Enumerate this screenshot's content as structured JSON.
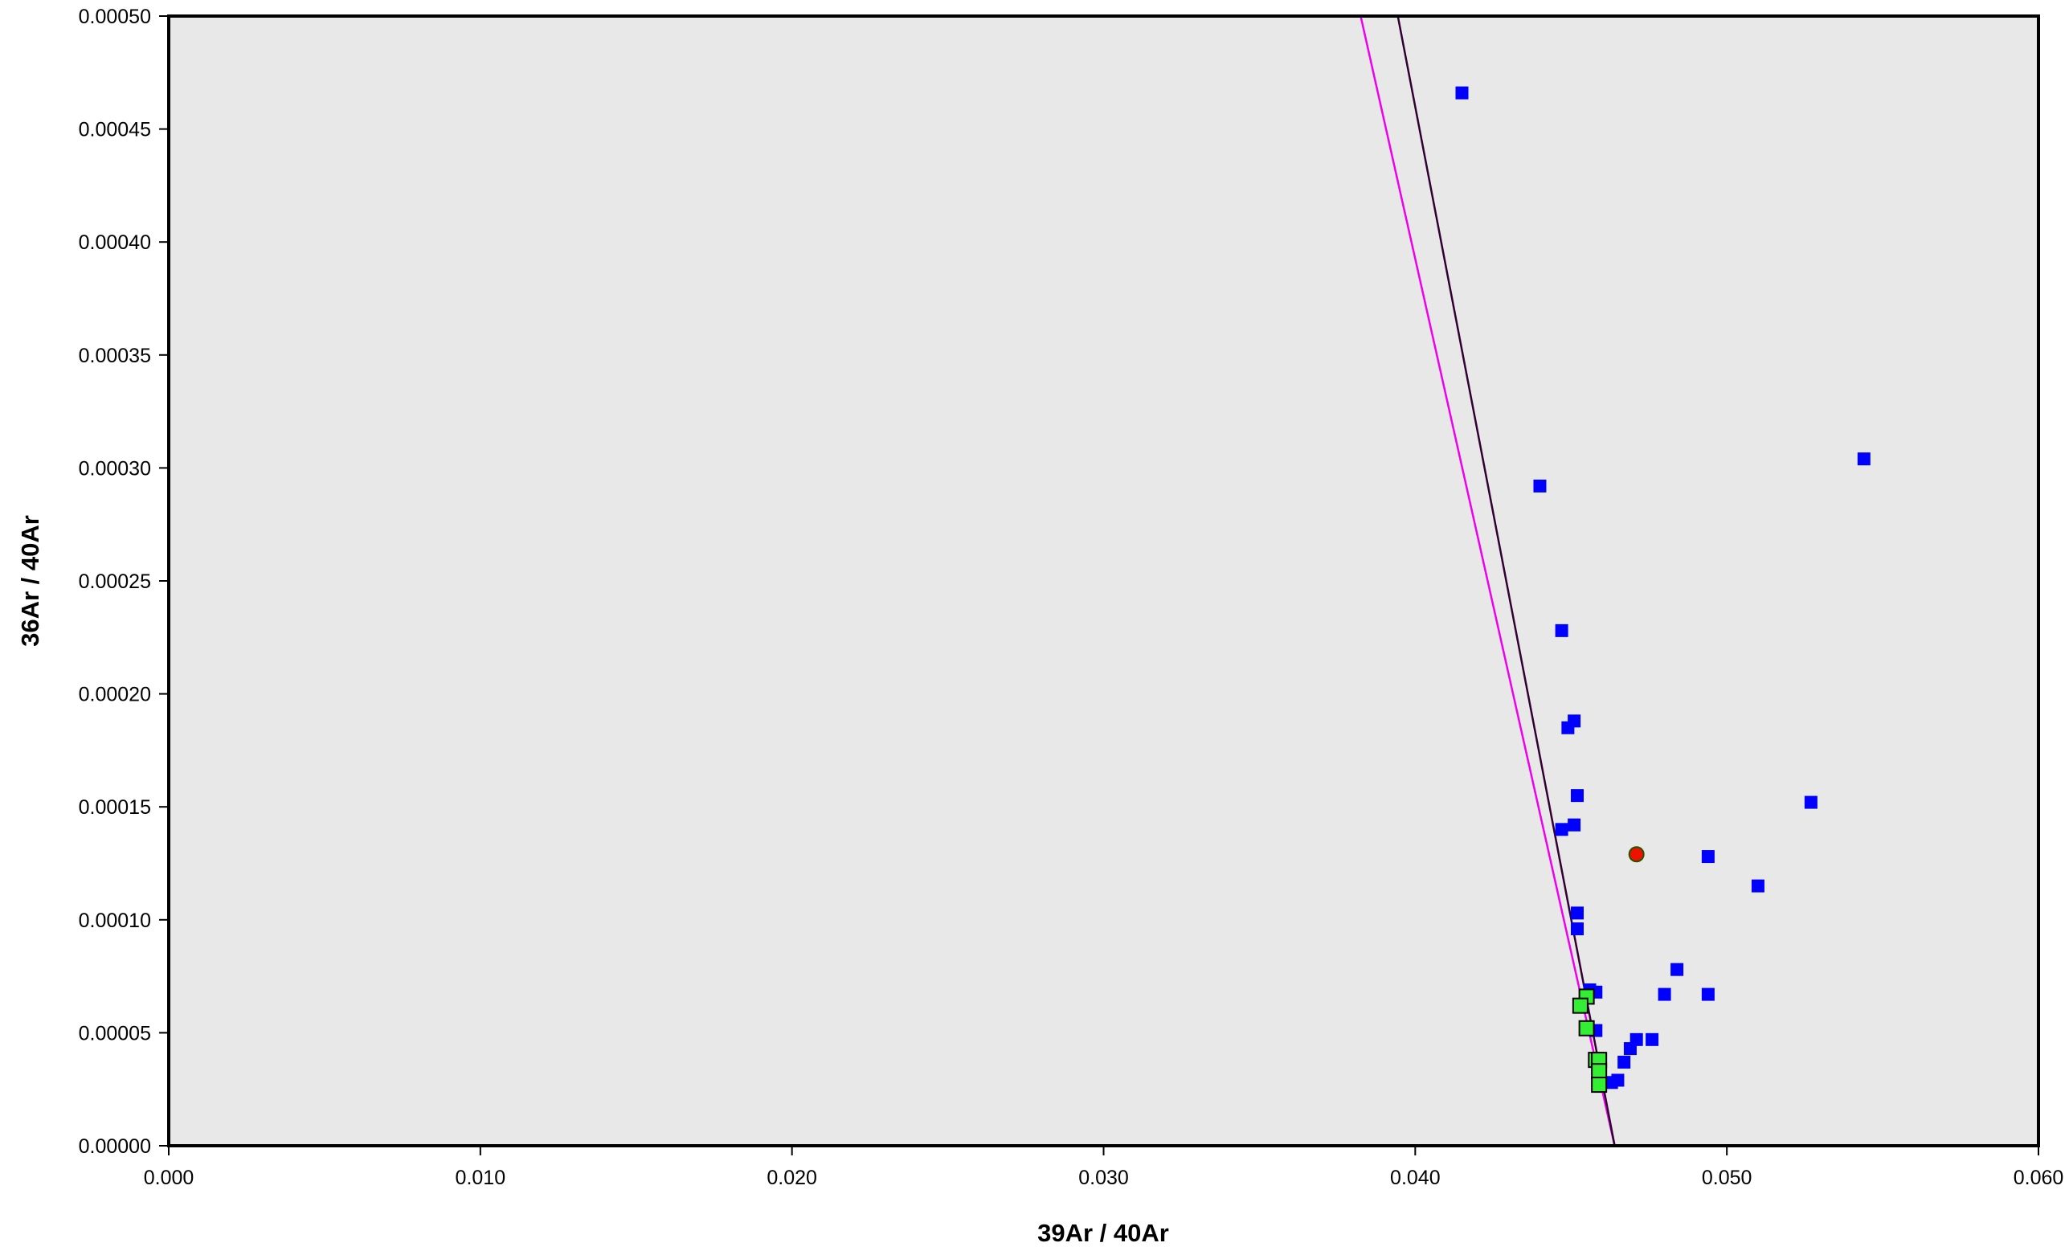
{
  "chart_data": {
    "type": "scatter",
    "title": "",
    "xlabel": "39Ar / 40Ar",
    "ylabel": "36Ar / 40Ar",
    "xlim": [
      0.0,
      0.06
    ],
    "ylim": [
      0.0,
      0.0005
    ],
    "x_ticks": [
      "0.000",
      "0.010",
      "0.020",
      "0.030",
      "0.040",
      "0.050",
      "0.060"
    ],
    "y_ticks": [
      "0.00000",
      "0.00005",
      "0.00010",
      "0.00015",
      "0.00020",
      "0.00025",
      "0.00030",
      "0.00035",
      "0.00040",
      "0.00045",
      "0.00050"
    ],
    "grid": false,
    "legend": "none",
    "colors": {
      "plot_background": "#e8e8e8",
      "blue_points": "#0000ff",
      "green_points": "#33ee33",
      "red_point": "#ee1100",
      "magenta_line": "#ee00ee",
      "dark_line": "#330033"
    },
    "series": [
      {
        "marker": "square",
        "color": "#0000ff",
        "points": [
          [
            0.0415,
            0.000466
          ],
          [
            0.044,
            0.000292
          ],
          [
            0.0447,
            0.000228
          ],
          [
            0.0449,
            0.000185
          ],
          [
            0.0451,
            0.000188
          ],
          [
            0.0452,
            0.000155
          ],
          [
            0.0447,
            0.00014
          ],
          [
            0.0451,
            0.000142
          ],
          [
            0.0452,
            0.000103
          ],
          [
            0.0452,
            9.6e-05
          ],
          [
            0.0456,
            6.9e-05
          ],
          [
            0.0458,
            6.8e-05
          ],
          [
            0.0458,
            5.1e-05
          ],
          [
            0.0463,
            2.8e-05
          ],
          [
            0.0465,
            2.9e-05
          ],
          [
            0.0467,
            3.7e-05
          ],
          [
            0.0469,
            4.3e-05
          ],
          [
            0.0471,
            4.7e-05
          ],
          [
            0.0476,
            4.7e-05
          ],
          [
            0.048,
            6.7e-05
          ],
          [
            0.0484,
            7.8e-05
          ],
          [
            0.0494,
            0.000128
          ],
          [
            0.0494,
            6.7e-05
          ],
          [
            0.051,
            0.000115
          ],
          [
            0.0527,
            0.000152
          ],
          [
            0.0544,
            0.000304
          ]
        ]
      },
      {
        "marker": "square",
        "color": "#33ee33",
        "points": [
          [
            0.0455,
            6.6e-05
          ],
          [
            0.0453,
            6.2e-05
          ],
          [
            0.0455,
            5.2e-05
          ],
          [
            0.0458,
            3.8e-05
          ],
          [
            0.0459,
            3.8e-05
          ],
          [
            0.0459,
            3.3e-05
          ],
          [
            0.0459,
            2.7e-05
          ]
        ]
      },
      {
        "marker": "circle",
        "color": "#ee1100",
        "points": [
          [
            0.0471,
            0.000129
          ]
        ]
      }
    ],
    "lines": [
      {
        "color": "#ee00ee",
        "from": [
          0.0382,
          0.000503
        ],
        "to": [
          0.0464,
          0.0
        ]
      },
      {
        "color": "#330033",
        "from": [
          0.0394,
          0.000503
        ],
        "to": [
          0.0464,
          0.0
        ]
      }
    ]
  }
}
